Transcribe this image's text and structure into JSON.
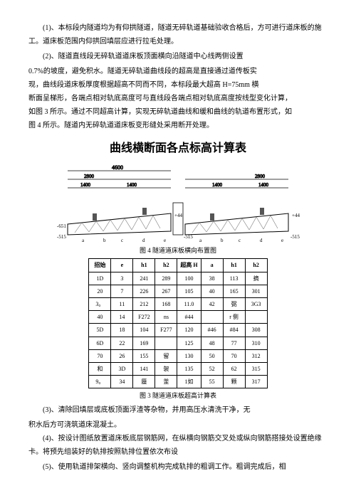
{
  "p1": "(1)、本标段内隧道均为有仰拱隧道，隧道无碎轨道基础验收合格后，方可进行道床板的施工。道床板范围内仰拱回填层应进行拉毛处理。",
  "p2a": "(2)、隧道直线段无碎轨道道床板顶面横向沿隧道中心线两侧设置",
  "p2b": "0.7%的坡度，避免积水。隧道无碎轨道曲线段的超高是直接通过道传板实",
  "p2c": "现，曲线段道床板厚度根据超高不同而不同，本标段最大超高 H=75mm 横",
  "p2d": "断面呈梯形，各端点相对轨底高度可与直线段各端点相对轨底高度按线型变化计算，",
  "p2e": "如图 3 所示。通过不同超高计算，实现无碎轨道曲线和缓和曲线的轨道布置形式，如",
  "p2f": "图 4 所示。隧道内无碎轨道道床板变形缝处采用断开处理。",
  "title": "曲线横断面各点标高计算表",
  "fig4cap": "图 4 隧道道床板横向布置图",
  "fig3cap": "图 3 隧道道床板超高计算表",
  "diagram": {
    "top_dim": "4600",
    "left_seg1": "2800",
    "left_seg2": "1400",
    "left_seg3": "1400",
    "right_seg1": "2800",
    "right_seg2": "1400",
    "right_seg3": "1400",
    "label_651": "-651",
    "label_515": "-515",
    "label_44": "+44",
    "letters": [
      "a",
      "b",
      "c",
      "d",
      "e",
      "a",
      "b",
      "c",
      "d",
      "e"
    ],
    "truss_color": "#7a7a7a",
    "dim_color": "#000",
    "line_w": 1
  },
  "table": {
    "headers": [
      "招始",
      "e",
      "h1",
      "h2",
      "超高 H",
      "a",
      "h1",
      "h2"
    ],
    "rows": [
      [
        "1D",
        "3",
        "241",
        "289",
        "100",
        "38",
        "113",
        "摘"
      ],
      [
        "20",
        "7",
        "226",
        "267",
        "105",
        "40",
        "165",
        "301"
      ],
      [
        "3。",
        "11",
        "212",
        "168",
        "11.0",
        "42",
        "弼",
        "3G3"
      ],
      [
        "40",
        "14",
        "F272",
        "ns",
        "#44",
        "",
        "r 侧",
        ""
      ],
      [
        "5D",
        "18",
        "104",
        "F277",
        "120",
        "#46",
        "#84",
        "308"
      ],
      [
        "6D",
        "22",
        "169",
        "",
        "125",
        "48",
        "77",
        "310"
      ],
      [
        "70",
        "26",
        "155",
        "留",
        "130",
        "50",
        "70",
        "312"
      ],
      [
        "和",
        "3D",
        "141",
        "袈",
        "135",
        "52",
        "62",
        "315"
      ],
      [
        "9。",
        "34",
        "蜃",
        "釜",
        "1如",
        "55",
        "颗",
        "317"
      ]
    ],
    "border_color": "#000"
  },
  "p3": "(3)、清除回填层或底板顶面浮渣等杂物，并用高压水清洗干净，无",
  "p3b": "积水后方可浇筑道床混凝土。",
  "p4": "(4)、按设计图纸放置道床板底层钢筋网，在纵横向钢筋交叉处或纵向钢筋搭接处设置绝缘卡。将预先组装好的轨排按照轨排位置依次布设",
  "p5": "(5)、使用轨道排架横向、竖向调整机构完成轨排的粗调工作。粗调完成后，相"
}
